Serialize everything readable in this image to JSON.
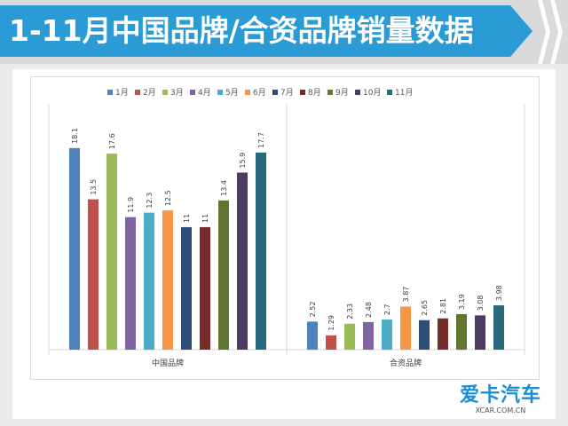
{
  "header": {
    "title": "1-11月中国品牌/合资品牌销量数据"
  },
  "watermark": {
    "main": "爱卡汽车",
    "sub": "XCAR.COM.CN"
  },
  "chart_data": {
    "type": "bar",
    "title": "",
    "xlabel": "",
    "ylabel": "",
    "ylim": [
      0,
      20
    ],
    "legend_position": "top",
    "categories": [
      "中国品牌",
      "合资品牌"
    ],
    "series": [
      {
        "name": "1月",
        "color": "#4f81bd",
        "values": [
          18.1,
          2.52
        ]
      },
      {
        "name": "2月",
        "color": "#c0504d",
        "values": [
          13.5,
          1.29
        ]
      },
      {
        "name": "3月",
        "color": "#9bbb59",
        "values": [
          17.6,
          2.33
        ]
      },
      {
        "name": "4月",
        "color": "#8064a2",
        "values": [
          11.9,
          2.48
        ]
      },
      {
        "name": "5月",
        "color": "#4bacc6",
        "values": [
          12.3,
          2.7
        ]
      },
      {
        "name": "6月",
        "color": "#f79646",
        "values": [
          12.5,
          3.87
        ]
      },
      {
        "name": "7月",
        "color": "#2c4d75",
        "values": [
          11,
          2.65
        ]
      },
      {
        "name": "8月",
        "color": "#772c2a",
        "values": [
          11,
          2.81
        ]
      },
      {
        "name": "9月",
        "color": "#5f7530",
        "values": [
          13.4,
          3.19
        ]
      },
      {
        "name": "10月",
        "color": "#4d3b62",
        "values": [
          15.9,
          3.08
        ]
      },
      {
        "name": "11月",
        "color": "#276a7c",
        "values": [
          17.7,
          3.98
        ]
      }
    ]
  }
}
